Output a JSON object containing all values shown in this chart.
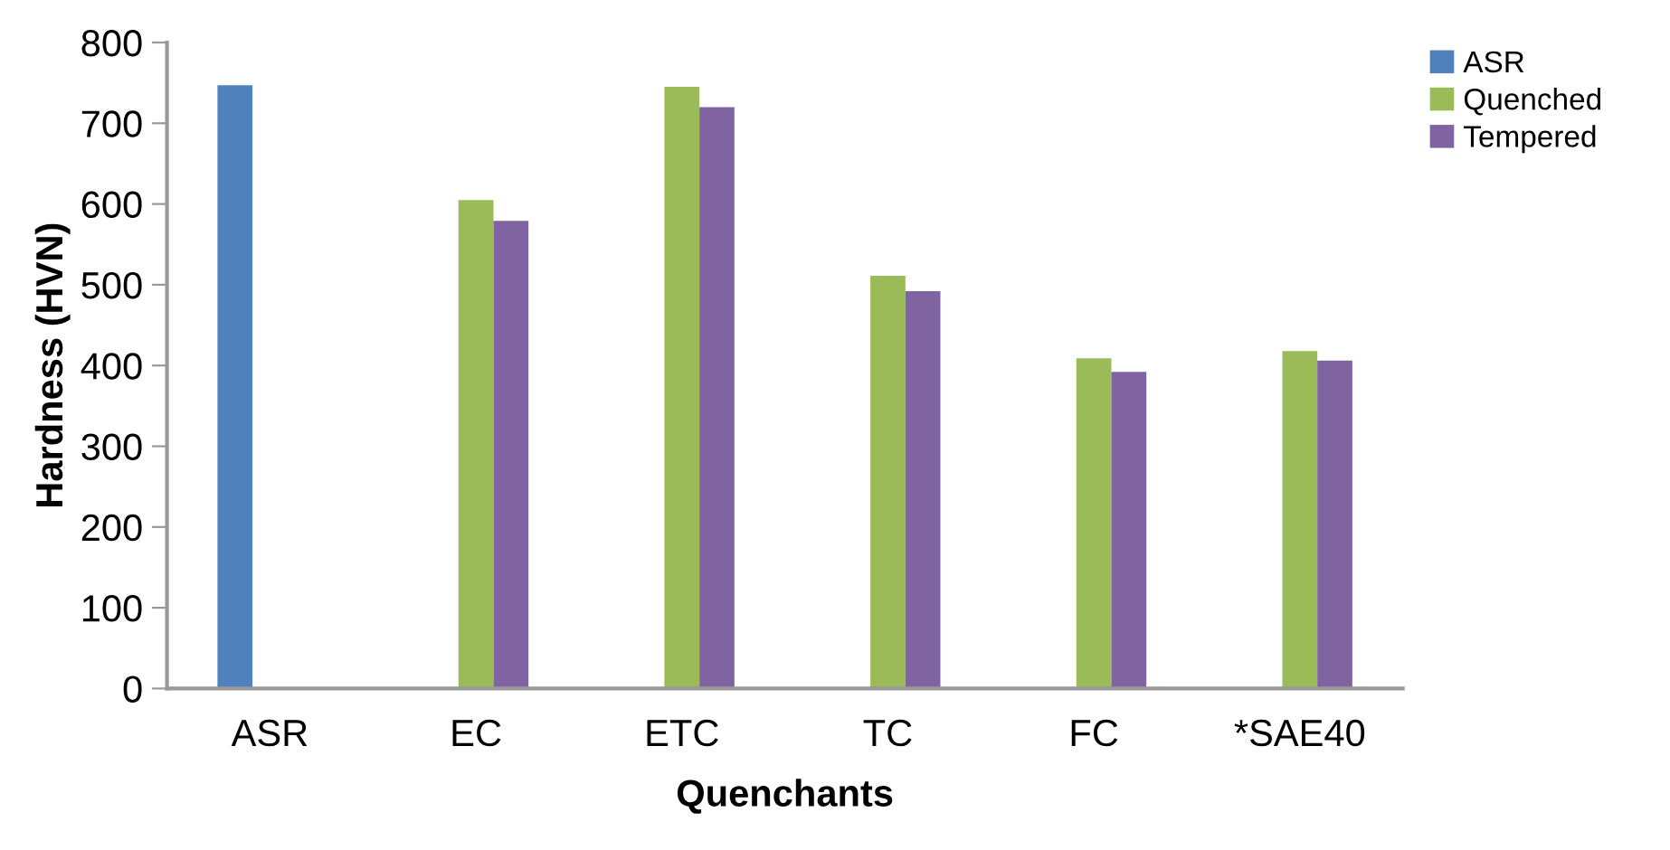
{
  "chart_data": {
    "type": "bar",
    "xlabel": "Quenchants",
    "ylabel": "Hardness (HVN)",
    "categories": [
      "ASR",
      "EC",
      "ETC",
      "TC",
      "FC",
      "*SAE40"
    ],
    "series": [
      {
        "name": "ASR",
        "color": "#4f81bd",
        "values": [
          747,
          null,
          null,
          null,
          null,
          null
        ]
      },
      {
        "name": "Quenched",
        "color": "#9bbb59",
        "values": [
          null,
          605,
          745,
          511,
          409,
          418
        ]
      },
      {
        "name": "Tempered",
        "color": "#8064a2",
        "values": [
          null,
          579,
          720,
          492,
          392,
          406
        ]
      }
    ],
    "ylim": [
      0,
      800
    ],
    "yticks": [
      0,
      100,
      200,
      300,
      400,
      500,
      600,
      700,
      800
    ],
    "grid": false,
    "legend": "top right"
  }
}
